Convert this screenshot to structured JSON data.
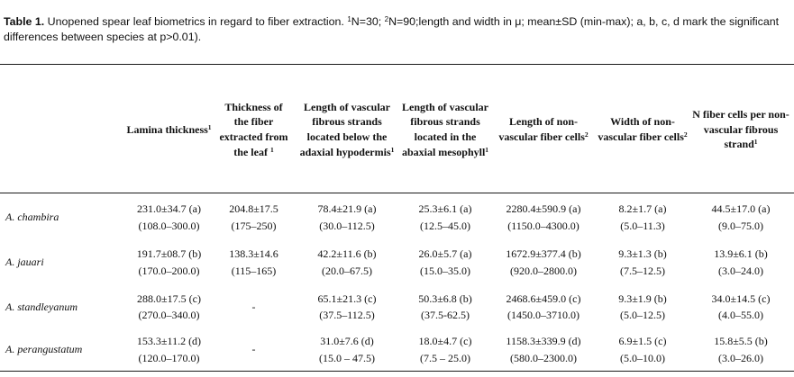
{
  "caption": {
    "label": "Table 1.",
    "part1": " Unopened spear leaf biometrics in regard to fiber extraction. ",
    "sup1": "1",
    "part2": "N=30; ",
    "sup2": "2",
    "part3": "N=90;length and width in μ; mean±SD (min-max); a, b, c, d mark the significant differences between species at p>0.01)."
  },
  "headers": [
    {
      "text": "",
      "sup": ""
    },
    {
      "text": "Lamina thickness",
      "sup": "1"
    },
    {
      "text": "Thickness of the fiber extracted from the leaf ",
      "sup": "1"
    },
    {
      "text": "Length of vascular fibrous strands located below the adaxial hypodermis",
      "sup": "1"
    },
    {
      "text": "Length of vascular fibrous strands located in the abaxial mesophyll",
      "sup": "1"
    },
    {
      "text": "Length of non-vascular fiber cells",
      "sup": "2"
    },
    {
      "text": "Width of non-vascular fiber cells",
      "sup": "2"
    },
    {
      "text": "N fiber cells per non-vascular fibrous strand",
      "sup": "1"
    }
  ],
  "rows": [
    {
      "species": "A. chambira",
      "cells": [
        {
          "mean": "231.0±34.7 (a)",
          "range": "(108.0–300.0)"
        },
        {
          "mean": "204.8±17.5",
          "range": "(175–250)"
        },
        {
          "mean": "78.4±21.9 (a)",
          "range": "(30.0–112.5)"
        },
        {
          "mean": "25.3±6.1 (a)",
          "range": "(12.5–45.0)"
        },
        {
          "mean": "2280.4±590.9 (a)",
          "range": "(1150.0–4300.0)"
        },
        {
          "mean": "8.2±1.7 (a)",
          "range": "(5.0–11.3)"
        },
        {
          "mean": "44.5±17.0 (a)",
          "range": "(9.0–75.0)"
        }
      ]
    },
    {
      "species": "A. jauari",
      "cells": [
        {
          "mean": "191.7±08.7 (b)",
          "range": "(170.0–200.0)"
        },
        {
          "mean": "138.3±14.6",
          "range": "(115–165)"
        },
        {
          "mean": "42.2±11.6 (b)",
          "range": "(20.0–67.5)"
        },
        {
          "mean": "26.0±5.7 (a)",
          "range": "(15.0–35.0)"
        },
        {
          "mean": "1672.9±377.4 (b)",
          "range": "(920.0–2800.0)"
        },
        {
          "mean": "9.3±1.3 (b)",
          "range": "(7.5–12.5)"
        },
        {
          "mean": "13.9±6.1 (b)",
          "range": "(3.0–24.0)"
        }
      ]
    },
    {
      "species": "A. standleyanum",
      "cells": [
        {
          "mean": "288.0±17.5 (c)",
          "range": "(270.0–340.0)"
        },
        {
          "mean": "-",
          "range": ""
        },
        {
          "mean": "65.1±21.3 (c)",
          "range": "(37.5–112.5)"
        },
        {
          "mean": "50.3±6.8 (b)",
          "range": "(37.5-62.5)"
        },
        {
          "mean": "2468.6±459.0 (c)",
          "range": "(1450.0–3710.0)"
        },
        {
          "mean": "9.3±1.9 (b)",
          "range": "(5.0–12.5)"
        },
        {
          "mean": "34.0±14.5 (c)",
          "range": "(4.0–55.0)"
        }
      ]
    },
    {
      "species": "A. perangustatum",
      "cells": [
        {
          "mean": "153.3±11.2 (d)",
          "range": "(120.0–170.0)"
        },
        {
          "mean": "-",
          "range": ""
        },
        {
          "mean": "31.0±7.6 (d)",
          "range": "(15.0 – 47.5)"
        },
        {
          "mean": "18.0±4.7 (c)",
          "range": "(7.5 – 25.0)"
        },
        {
          "mean": "1158.3±339.9 (d)",
          "range": "(580.0–2300.0)"
        },
        {
          "mean": "6.9±1.5 (c)",
          "range": "(5.0–10.0)"
        },
        {
          "mean": "15.8±5.5 (b)",
          "range": "(3.0–26.0)"
        }
      ]
    }
  ]
}
